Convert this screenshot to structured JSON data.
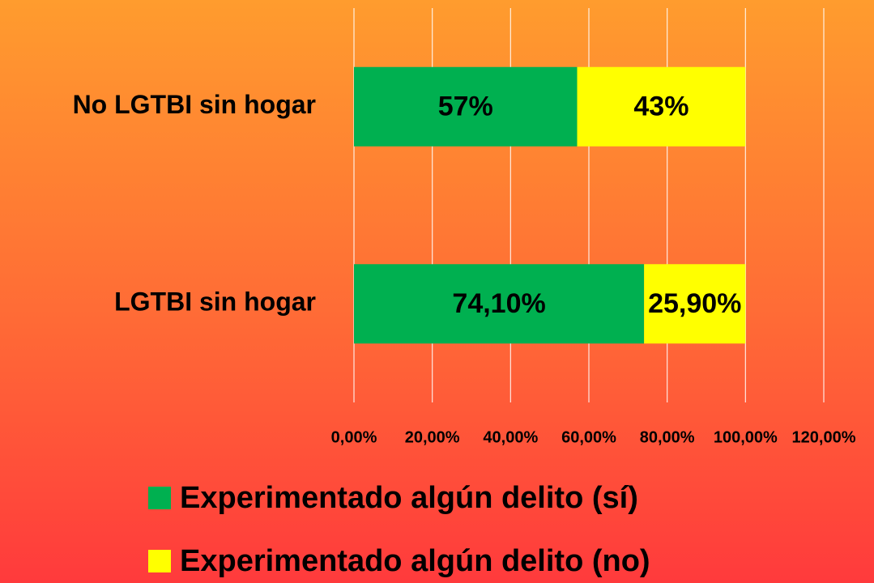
{
  "chart_data": {
    "type": "stacked-hbar",
    "categories": [
      "No LGTBI sin hogar",
      "LGTBI sin hogar"
    ],
    "series": [
      {
        "name": "Experimentado algún delito (sí)",
        "color": "#00b050",
        "values": [
          57,
          74.1
        ],
        "value_labels": [
          "57%",
          "74,10%"
        ]
      },
      {
        "name": "Experimentado algún delito (no)",
        "color": "#ffff00",
        "values": [
          43,
          25.9
        ],
        "value_labels": [
          "43%",
          "25,90%"
        ]
      }
    ],
    "xlim": [
      0,
      120
    ],
    "xticks": [
      {
        "value": 0,
        "label": "0,00%"
      },
      {
        "value": 20,
        "label": "20,00%"
      },
      {
        "value": 40,
        "label": "40,00%"
      },
      {
        "value": 60,
        "label": "60,00%"
      },
      {
        "value": 80,
        "label": "80,00%"
      },
      {
        "value": 100,
        "label": "100,00%"
      },
      {
        "value": 120,
        "label": "120,00%"
      }
    ],
    "grid": true
  }
}
